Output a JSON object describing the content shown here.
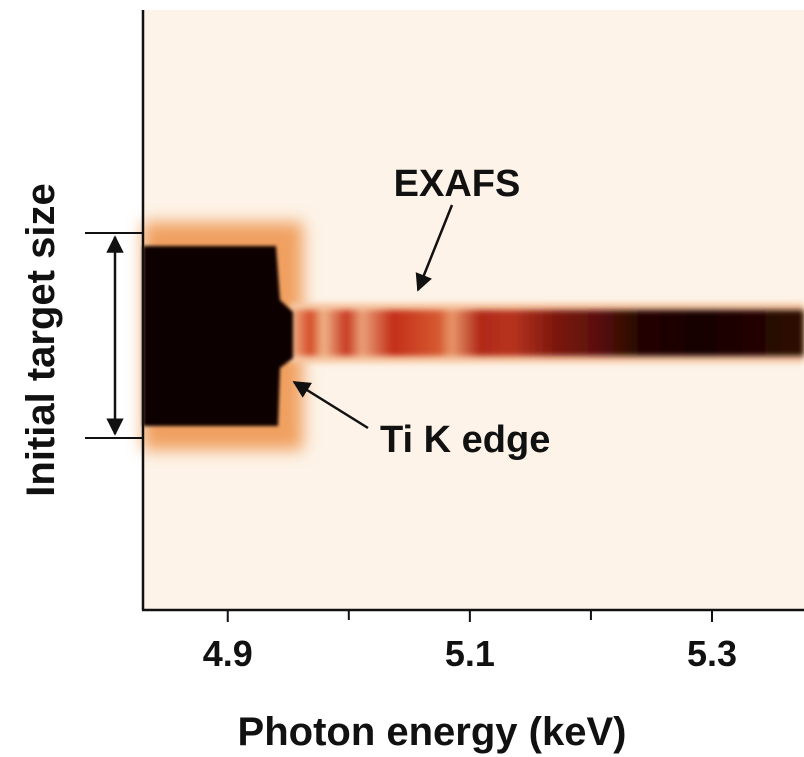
{
  "chart_data": {
    "type": "image",
    "xlabel": "Photon energy (keV)",
    "ylabel": "Initial target size",
    "xlim": [
      4.83,
      5.376
    ],
    "xticks": [
      4.9,
      5.1,
      5.3
    ],
    "xminorticks": [
      5,
      5.2
    ],
    "annotations": [
      {
        "text": "EXAFS"
      },
      {
        "text": "Ti K edge"
      }
    ]
  }
}
